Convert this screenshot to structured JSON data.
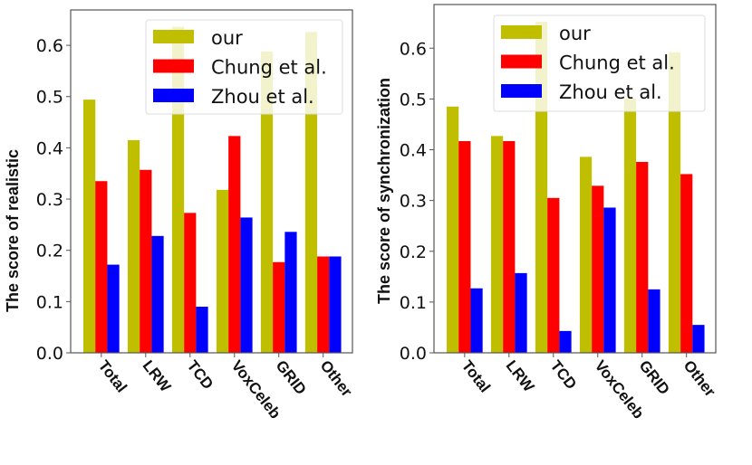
{
  "chart_data": [
    {
      "type": "bar",
      "title": "",
      "xlabel": "",
      "ylabel": "The score of realistic",
      "ylim": [
        0,
        0.669
      ],
      "yticks": [
        "0.0",
        "0.1",
        "0.2",
        "0.3",
        "0.4",
        "0.5",
        "0.6"
      ],
      "categories": [
        "Total",
        "LRW",
        "TCD",
        "VoxCeleb",
        "GRID",
        "Other"
      ],
      "legend_position": "top-right",
      "grid": false,
      "series": [
        {
          "name": "our",
          "color": "#bfbf00",
          "values": [
            0.494,
            0.415,
            0.636,
            0.318,
            0.588,
            0.626
          ]
        },
        {
          "name": "Chung et al.",
          "color": "#ff0000",
          "values": [
            0.335,
            0.357,
            0.273,
            0.423,
            0.177,
            0.188
          ]
        },
        {
          "name": "Zhou et al.",
          "color": "#0000ff",
          "values": [
            0.172,
            0.228,
            0.09,
            0.264,
            0.236,
            0.188
          ]
        }
      ]
    },
    {
      "type": "bar",
      "title": "",
      "xlabel": "",
      "ylabel": "The score of synchronization",
      "ylim": [
        0,
        0.686
      ],
      "yticks": [
        "0.0",
        "0.1",
        "0.2",
        "0.3",
        "0.4",
        "0.5",
        "0.6"
      ],
      "categories": [
        "Total",
        "LRW",
        "TCD",
        "VoxCeleb",
        "GRID",
        "Other"
      ],
      "legend_position": "top-right",
      "grid": false,
      "series": [
        {
          "name": "our",
          "color": "#bfbf00",
          "values": [
            0.485,
            0.427,
            0.652,
            0.386,
            0.501,
            0.592
          ]
        },
        {
          "name": "Chung et al.",
          "color": "#ff0000",
          "values": [
            0.417,
            0.417,
            0.305,
            0.329,
            0.376,
            0.352
          ]
        },
        {
          "name": "Zhou et al.",
          "color": "#0000ff",
          "values": [
            0.127,
            0.157,
            0.043,
            0.286,
            0.125,
            0.055
          ]
        }
      ]
    }
  ]
}
